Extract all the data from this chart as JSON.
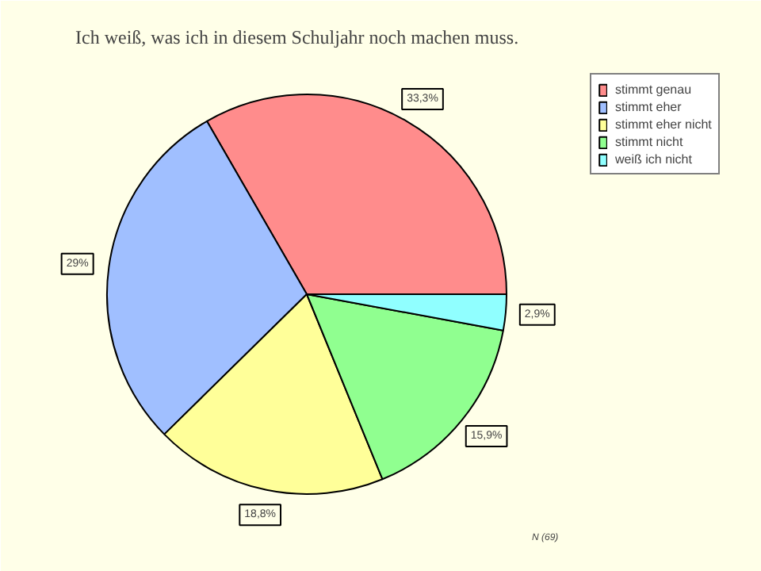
{
  "chart_data": {
    "type": "pie",
    "title": "Ich weiß, was ich in diesem Schuljahr noch machen muss.",
    "categories": [
      "stimmt genau",
      "stimmt eher",
      "stimmt eher nicht",
      "stimmt nicht",
      "weiß ich nicht"
    ],
    "values": [
      33.3,
      29,
      18.8,
      15.9,
      2.9
    ],
    "value_labels": [
      "33,3%",
      "29%",
      "18,8%",
      "15,9%",
      "2,9%"
    ],
    "colors": [
      "#ff8c8c",
      "#a0bfff",
      "#ffff99",
      "#90ff90",
      "#90ffff"
    ],
    "legend": "right",
    "annotations": [
      "N (69)"
    ]
  }
}
